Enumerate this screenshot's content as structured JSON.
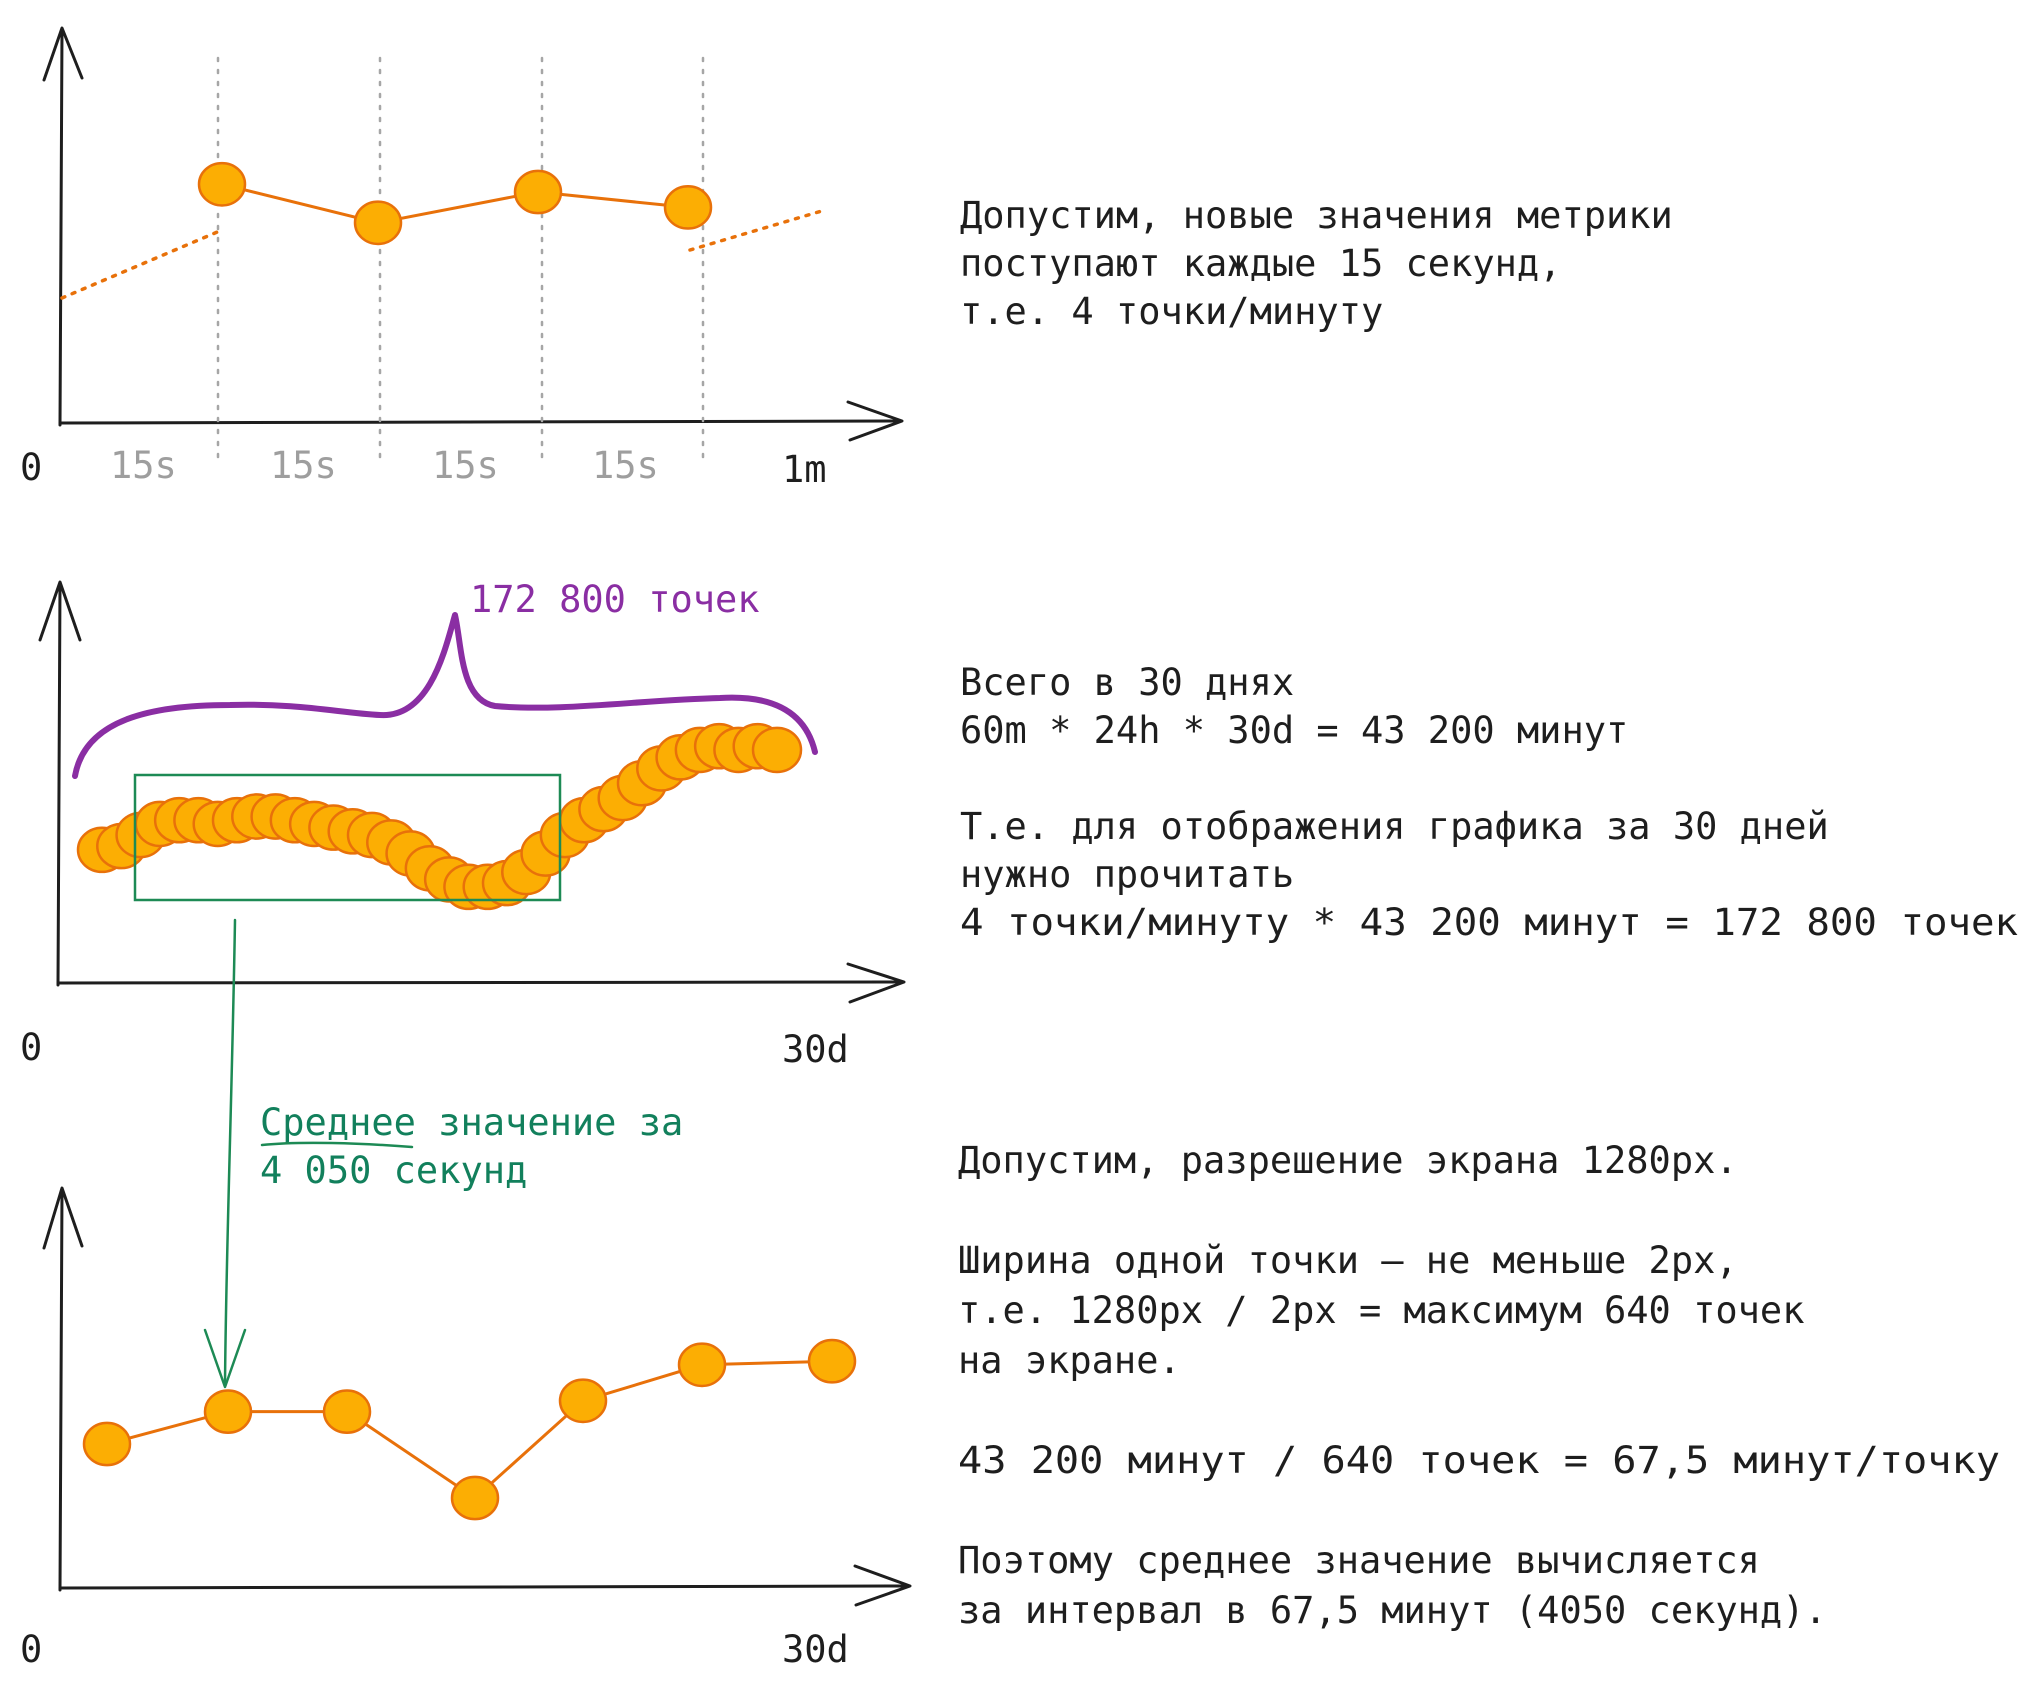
{
  "colors": {
    "ink": "#1e1e1e",
    "grey_label": "#9e9e9e",
    "point_fill": "#fcae03",
    "point_stroke": "#e8710a",
    "brace": "#8a2ea3",
    "average_window": "#1d8a55",
    "average_label": "#12805c"
  },
  "chart_data": [
    {
      "type": "line",
      "x_start_label": "0",
      "x_end_label": "1m",
      "interval_labels": [
        "15s",
        "15s",
        "15s",
        "15s"
      ],
      "grid": "dotted vertical lines every 15s",
      "values": [
        0.62,
        0.52,
        0.6,
        0.56
      ],
      "extrapolation": "dotted"
    },
    {
      "type": "scatter",
      "x_start_label": "0",
      "x_end_label": "30d",
      "brace_label": "172 800 точек",
      "values": [
        0.36,
        0.37,
        0.4,
        0.43,
        0.44,
        0.44,
        0.43,
        0.44,
        0.45,
        0.45,
        0.44,
        0.43,
        0.42,
        0.41,
        0.4,
        0.38,
        0.35,
        0.31,
        0.28,
        0.26,
        0.26,
        0.27,
        0.3,
        0.35,
        0.4,
        0.44,
        0.47,
        0.5,
        0.54,
        0.58,
        0.61,
        0.63,
        0.64,
        0.63,
        0.64,
        0.63
      ],
      "window_label_line1": "Среднее",
      "window_label_line1_rest": " значение за",
      "window_label_line2": "4 050 секунд"
    },
    {
      "type": "line",
      "x_start_label": "0",
      "x_end_label": "30d",
      "values": [
        0.4,
        0.49,
        0.49,
        0.25,
        0.52,
        0.62,
        0.63
      ]
    }
  ],
  "notes": {
    "block1": [
      "Допустим, новые значения метрики",
      "поступают каждые 15 секунд,",
      "т.е. 4 точки/минуту"
    ],
    "block2": [
      "Всего в 30 днях",
      "60m * 24h * 30d = 43 200 минут",
      "",
      "Т.е. для отображения графика за 30 дней",
      "нужно прочитать",
      "4 точки/минуту * 43 200 минут = 172 800 точек"
    ],
    "block3": [
      "Допустим, разрешение экрана 1280px.",
      "",
      "Ширина одной точки — не меньше 2px,",
      "т.е. 1280px / 2px = максимум 640 точек",
      "на экране.",
      "",
      "43 200 минут / 640 точек = 67,5 минут/точку",
      "",
      "Поэтому среднее значение вычисляется",
      "за интервал в 67,5 минут (4050 секунд)."
    ]
  }
}
